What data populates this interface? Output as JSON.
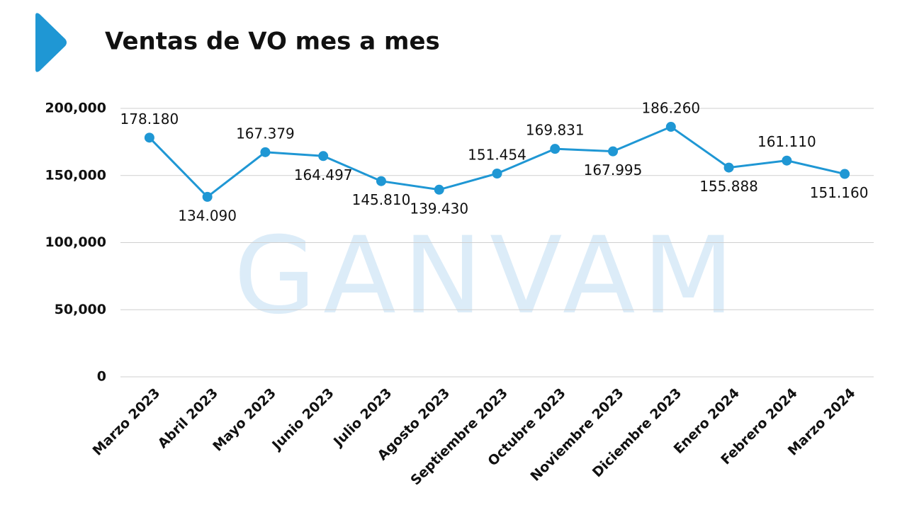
{
  "chart_data": {
    "type": "line",
    "title": "Ventas de VO mes a mes",
    "watermark": "GANVAM",
    "categories": [
      "Marzo 2023",
      "Abril 2023",
      "Mayo 2023",
      "Junio 2023",
      "Julio 2023",
      "Agosto 2023",
      "Septiembre 2023",
      "Octubre 2023",
      "Noviembre 2023",
      "Diciembre 2023",
      "Enero 2024",
      "Febrero 2024",
      "Marzo 2024"
    ],
    "values": [
      178180,
      134090,
      167379,
      164497,
      145810,
      139430,
      151454,
      169831,
      167995,
      186260,
      155888,
      161110,
      151160
    ],
    "value_labels": [
      "178.180",
      "134.090",
      "167.379",
      "164.497",
      "145.810",
      "139.430",
      "151.454",
      "169.831",
      "167.995",
      "186.260",
      "155.888",
      "161.110",
      "151.160"
    ],
    "color": "#1f97d4",
    "ylim": [
      0,
      200000
    ],
    "yticks": [
      0,
      {
        "value": 50000,
        "label": "50,000"
      },
      {
        "value": 100000,
        "label": "100,000"
      },
      {
        "value": 150000,
        "label": "150,000"
      },
      {
        "value": 200000,
        "label": "200,000"
      }
    ],
    "grid": true
  }
}
